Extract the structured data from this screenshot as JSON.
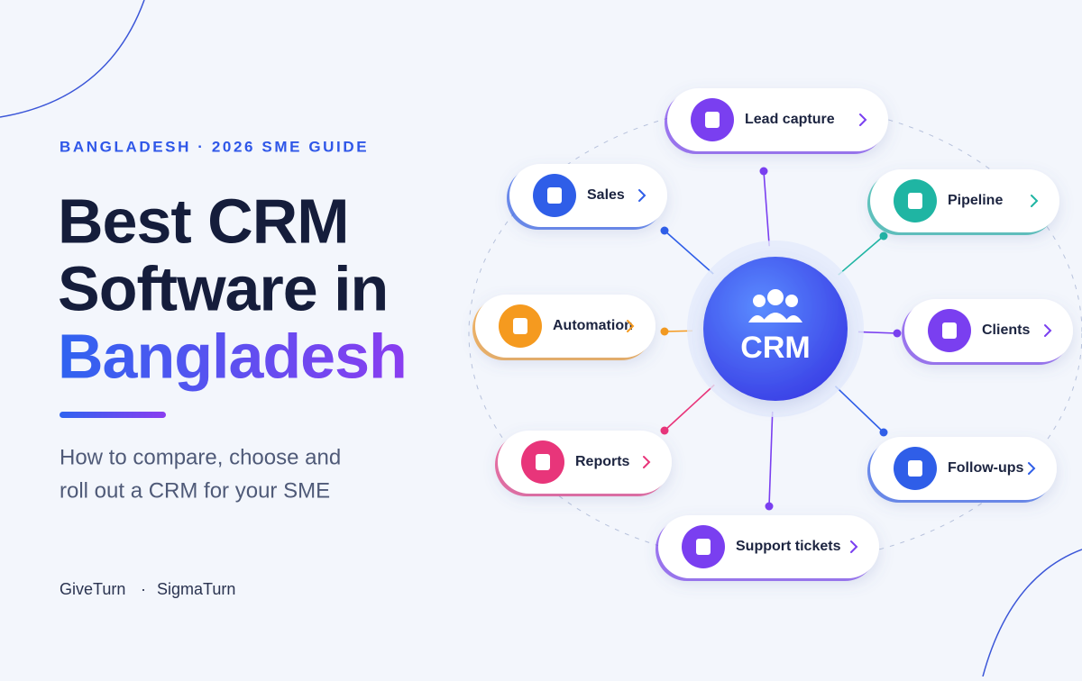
{
  "eyebrow": "BANGLADESH · 2026 SME GUIDE",
  "title": {
    "line1": "Best CRM",
    "line2": "Software in",
    "line3": "Bangladesh"
  },
  "subtitle": {
    "line1": "How to compare, choose and",
    "line2": "roll out a CRM for your SME"
  },
  "brands": {
    "first": "GiveTurn",
    "separator": "·",
    "second": "SigmaTurn"
  },
  "center": {
    "label": "CRM"
  },
  "nodes": [
    {
      "label": "Lead capture"
    },
    {
      "label": "Sales"
    },
    {
      "label": "Pipeline"
    },
    {
      "label": "Automation"
    },
    {
      "label": "Clients"
    },
    {
      "label": "Reports"
    },
    {
      "label": "Follow-ups"
    },
    {
      "label": "Support tickets"
    }
  ]
}
